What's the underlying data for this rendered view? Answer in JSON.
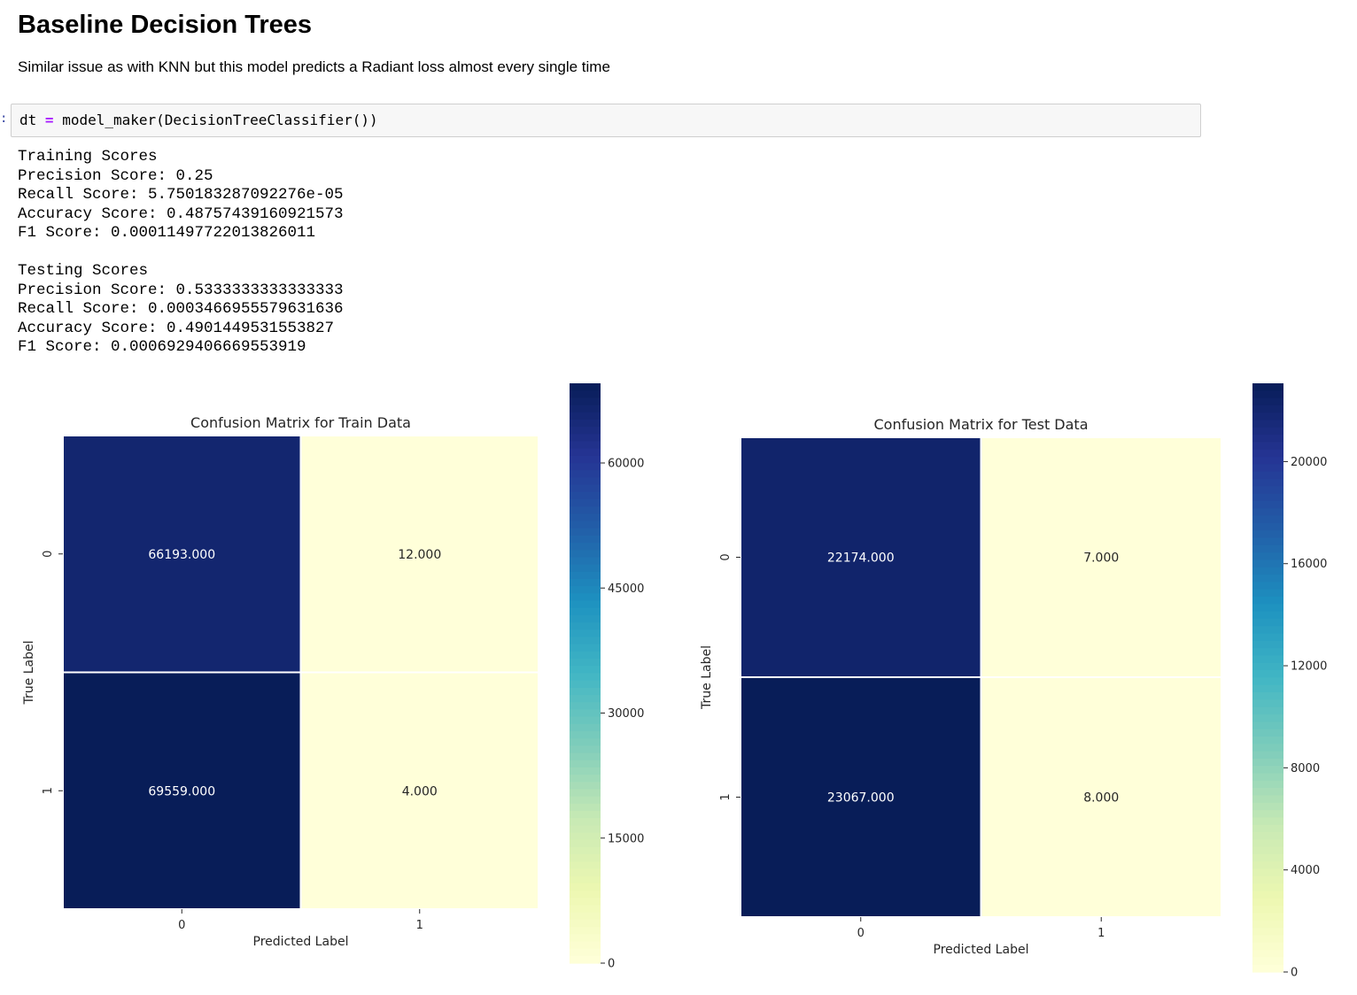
{
  "header": {
    "title": "Baseline Decision Trees",
    "description": "Similar issue as with KNN but this model predicts a Radiant loss almost every single time"
  },
  "cell": {
    "prompt": ":",
    "code": {
      "var": "dt",
      "op": "=",
      "rest": "model_maker(DecisionTreeClassifier())"
    },
    "output_lines": [
      "Training Scores",
      "Precision Score: 0.25",
      "Recall Score: 5.750183287092276e-05",
      "Accuracy Score: 0.48757439160921573",
      "F1 Score: 0.00011497722013826011",
      "",
      "Testing Scores",
      "Precision Score: 0.5333333333333333",
      "Recall Score: 0.0003466955579631636",
      "Accuracy Score: 0.4901449531553827",
      "F1 Score: 0.0006929406669553919"
    ]
  },
  "chart_data": [
    {
      "type": "heatmap",
      "title": "Confusion Matrix for Train Data",
      "xlabel": "Predicted Label",
      "ylabel": "True Label",
      "x_categories": [
        "0",
        "1"
      ],
      "y_categories": [
        "0",
        "1"
      ],
      "values": [
        [
          66193,
          12
        ],
        [
          69559,
          4
        ]
      ],
      "annotations": [
        [
          "66193.000",
          "12.000"
        ],
        [
          "69559.000",
          "4.000"
        ]
      ],
      "colormap": "YlGnBu",
      "colorbar": {
        "min": 0,
        "max": 69559,
        "ticks": [
          0,
          15000,
          30000,
          45000,
          60000
        ]
      },
      "grid": false
    },
    {
      "type": "heatmap",
      "title": "Confusion Matrix for Test Data",
      "xlabel": "Predicted Label",
      "ylabel": "True Label",
      "x_categories": [
        "0",
        "1"
      ],
      "y_categories": [
        "0",
        "1"
      ],
      "values": [
        [
          22174,
          7
        ],
        [
          23067,
          8
        ]
      ],
      "annotations": [
        [
          "22174.000",
          "7.000"
        ],
        [
          "23067.000",
          "8.000"
        ]
      ],
      "colormap": "YlGnBu",
      "colorbar": {
        "min": 0,
        "max": 23067,
        "ticks": [
          0,
          4000,
          8000,
          12000,
          16000,
          20000
        ]
      },
      "grid": false
    }
  ]
}
